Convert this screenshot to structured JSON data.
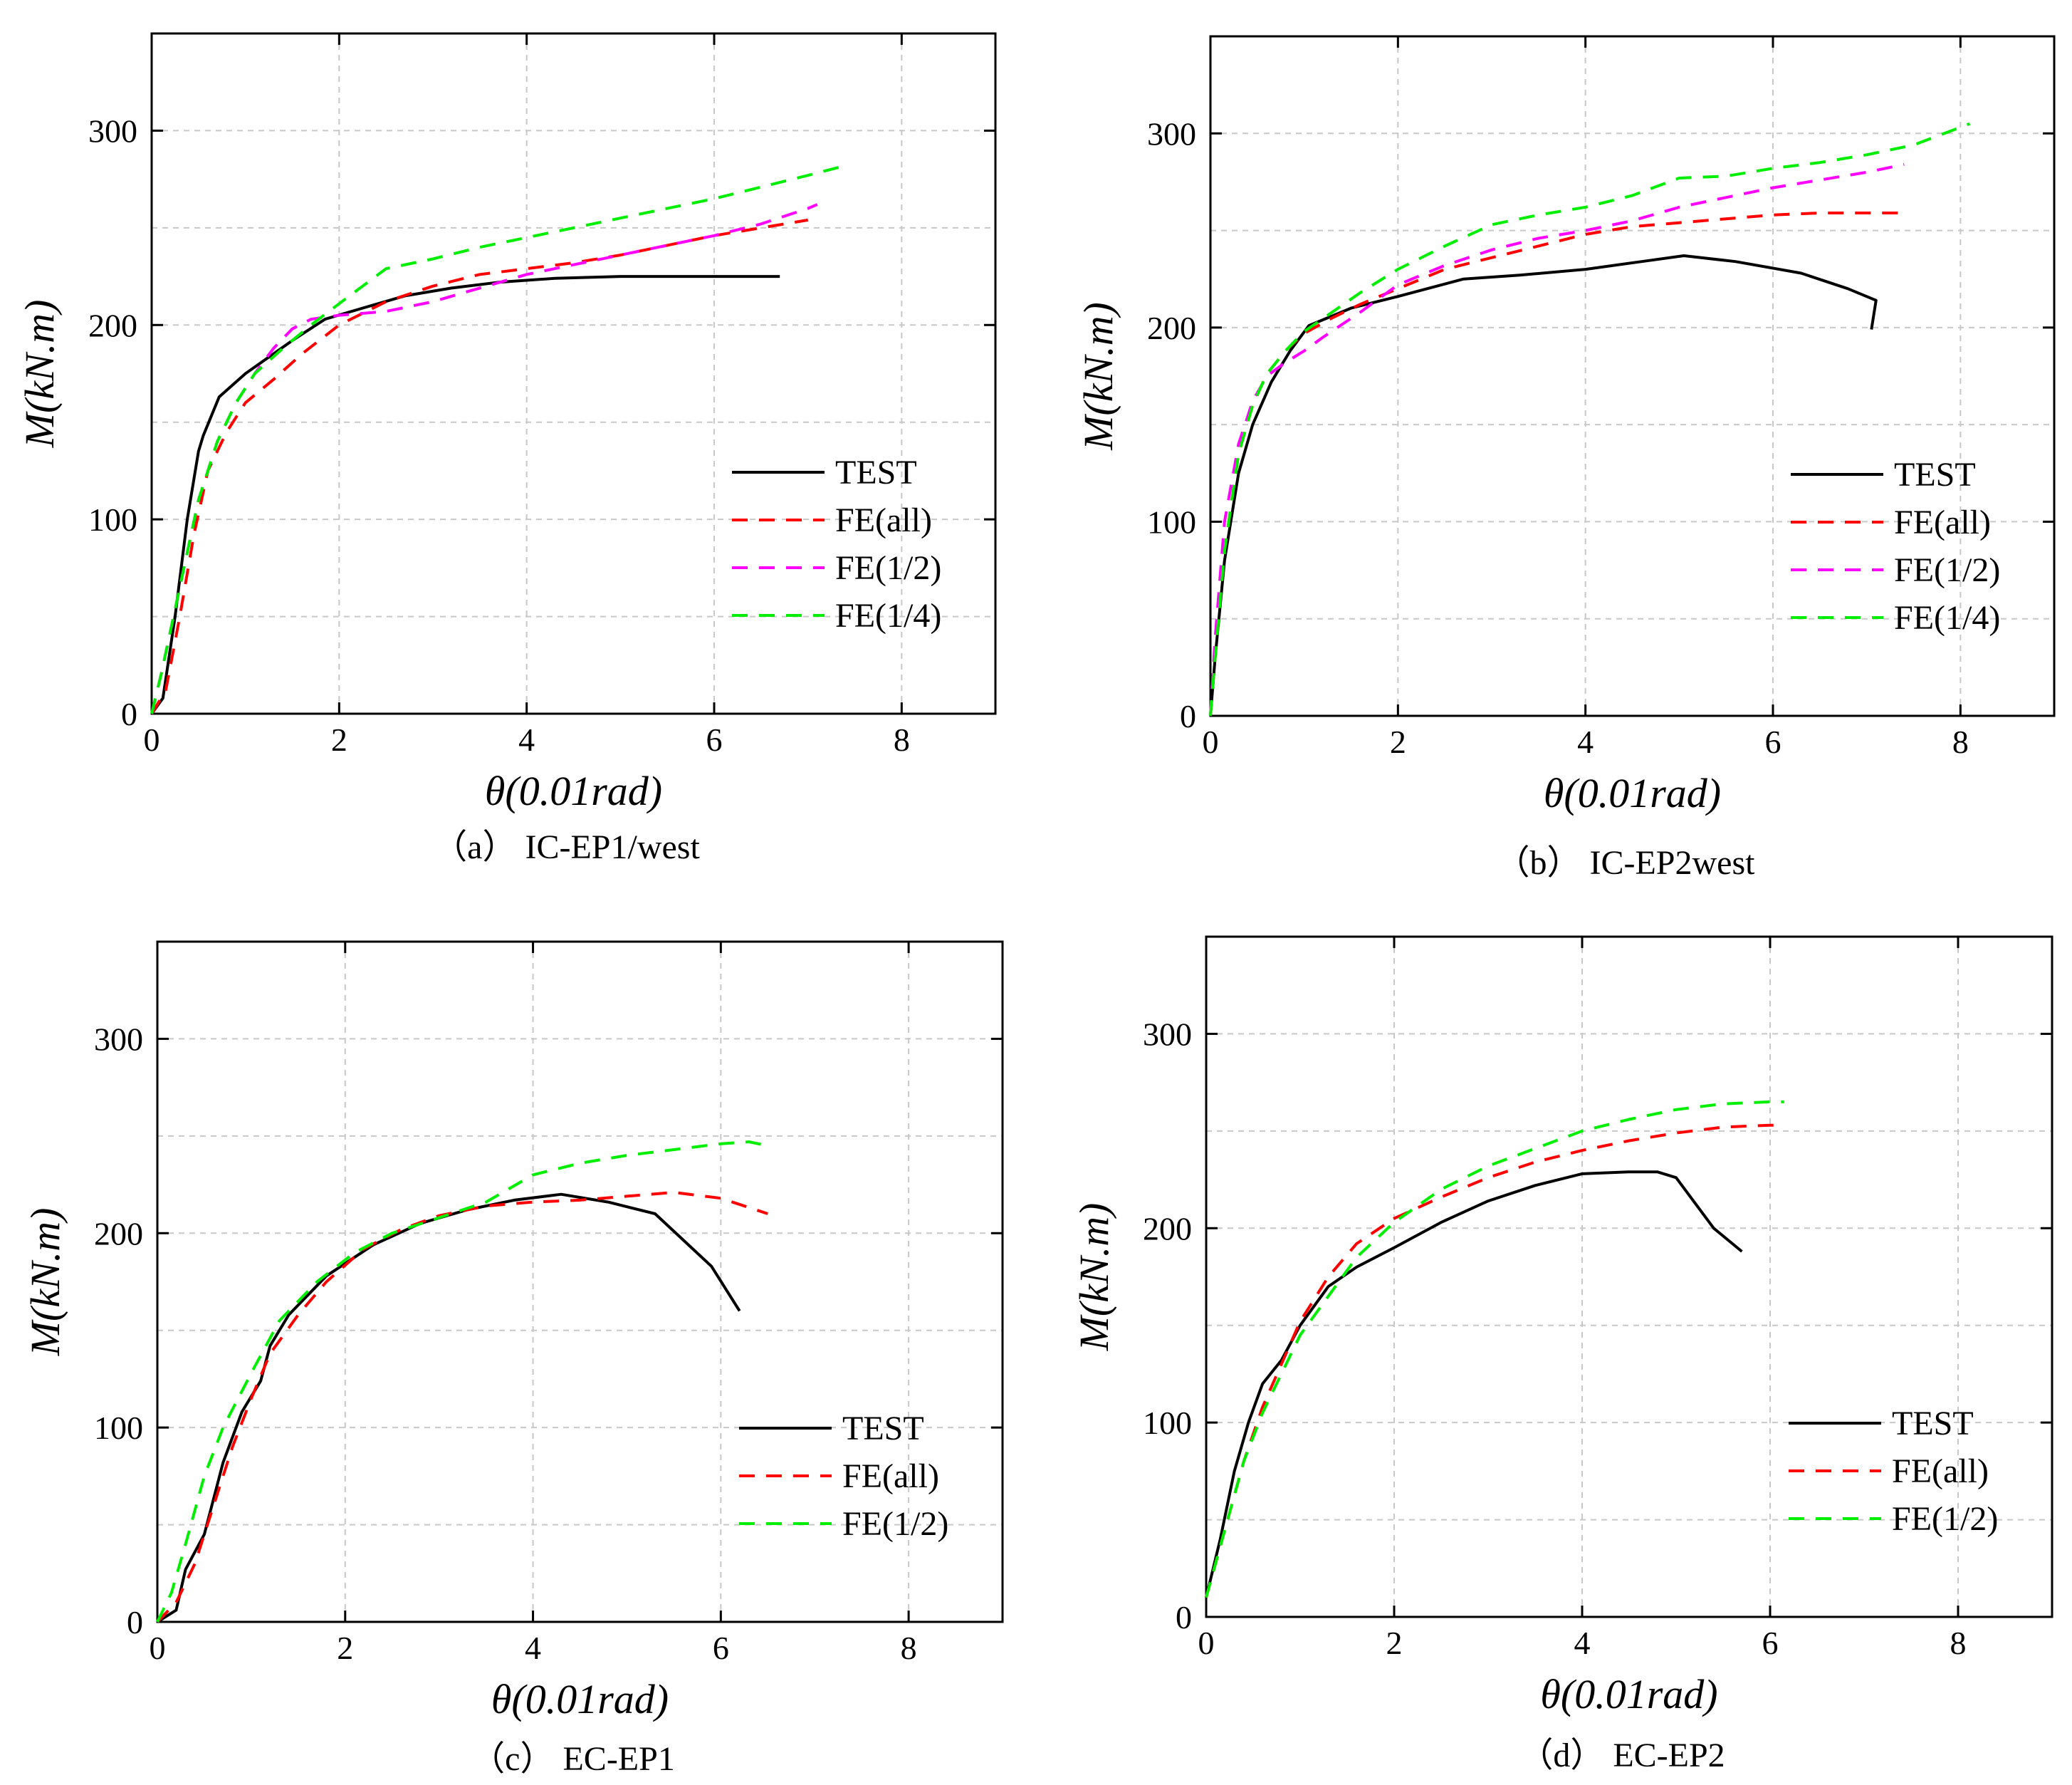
{
  "chart_data": [
    {
      "id": "a",
      "type": "line",
      "caption": "（a） IC-EP1/west",
      "xlabel": "θ(0.01rad)",
      "ylabel": "M(kN.m)",
      "xlim": [
        0,
        9
      ],
      "ylim": [
        0,
        350
      ],
      "xticks": [
        0,
        2,
        4,
        6,
        8
      ],
      "yticks": [
        0,
        100,
        200,
        300
      ],
      "grid": true,
      "legend_position": "lower-right",
      "series": [
        {
          "name": "TEST",
          "color": "#000000",
          "style": "solid",
          "x": [
            0,
            0.12,
            0.25,
            0.38,
            0.5,
            0.55,
            0.72,
            1.0,
            1.5,
            1.85,
            2.2,
            2.7,
            3.2,
            3.7,
            4.3,
            5.0,
            5.8,
            6.7
          ],
          "y": [
            0,
            8,
            50,
            100,
            135,
            143,
            163,
            175,
            192,
            203,
            208,
            215,
            219,
            222,
            224,
            225,
            225,
            225
          ]
        },
        {
          "name": "FE(all)",
          "color": "#ff0000",
          "style": "dashed",
          "x": [
            0,
            0.15,
            0.3,
            0.45,
            0.6,
            0.8,
            1.0,
            1.3,
            1.6,
            2.0,
            2.5,
            3.0,
            3.5,
            4.0,
            4.5,
            5.0,
            5.5,
            6.0,
            6.5,
            7.0
          ],
          "y": [
            0,
            12,
            50,
            92,
            125,
            145,
            160,
            172,
            185,
            200,
            212,
            220,
            226,
            229,
            232,
            236,
            241,
            246,
            250,
            254
          ]
        },
        {
          "name": "FE(1/2)",
          "color": "#ff00ff",
          "style": "dashed",
          "x": [
            0,
            0.1,
            0.3,
            0.5,
            0.7,
            0.9,
            1.1,
            1.3,
            1.5,
            1.7,
            2.0,
            2.5,
            3.0,
            3.5,
            4.0,
            4.5,
            5.0,
            5.5,
            6.0,
            6.5,
            7.0,
            7.1
          ],
          "y": [
            0,
            20,
            65,
            110,
            140,
            160,
            175,
            188,
            198,
            203,
            205,
            207,
            212,
            219,
            226,
            231,
            236,
            241,
            246,
            252,
            260,
            262
          ]
        },
        {
          "name": "FE(1/4)",
          "color": "#00ee00",
          "style": "dashed",
          "x": [
            0,
            0.1,
            0.3,
            0.5,
            0.7,
            0.9,
            1.1,
            1.4,
            1.7,
            2.0,
            2.5,
            3.0,
            3.5,
            4.0,
            4.5,
            5.0,
            5.5,
            6.0,
            6.5,
            7.0,
            7.4
          ],
          "y": [
            0,
            20,
            65,
            110,
            140,
            160,
            175,
            188,
            200,
            211,
            229,
            234,
            240,
            245,
            250,
            255,
            260,
            265,
            271,
            277,
            282
          ]
        }
      ]
    },
    {
      "id": "b",
      "type": "line",
      "caption": "（b） IC-EP2west",
      "xlabel": "θ(0.01rad)",
      "ylabel": "M(kN.m)",
      "xlim": [
        0,
        9
      ],
      "ylim": [
        0,
        350
      ],
      "xticks": [
        0,
        2,
        4,
        6,
        8
      ],
      "yticks": [
        0,
        100,
        200,
        300
      ],
      "grid": true,
      "legend_position": "lower-right",
      "series": [
        {
          "name": "TEST",
          "color": "#000000",
          "style": "solid",
          "x": [
            0,
            0.05,
            0.15,
            0.3,
            0.45,
            0.65,
            0.85,
            1.05,
            1.5,
            2.0,
            2.7,
            3.3,
            4.0,
            4.6,
            5.05,
            5.6,
            6.3,
            6.8,
            7.1,
            7.05
          ],
          "y": [
            0,
            30,
            80,
            125,
            150,
            172,
            188,
            201,
            210,
            216,
            225,
            227,
            230,
            234,
            237,
            234,
            228,
            220,
            214,
            199
          ]
        },
        {
          "name": "FE(all)",
          "color": "#ff0000",
          "style": "dashed",
          "x": [
            0,
            0.05,
            0.15,
            0.3,
            0.45,
            0.6,
            0.8,
            1.0,
            1.3,
            1.6,
            2.0,
            2.5,
            3.0,
            3.5,
            4.0,
            4.5,
            5.0,
            5.5,
            6.0,
            6.5,
            7.0,
            7.4
          ],
          "y": [
            0,
            30,
            85,
            135,
            160,
            176,
            188,
            197,
            205,
            212,
            220,
            230,
            236,
            242,
            248,
            252,
            254,
            256,
            258,
            259,
            259,
            259
          ]
        },
        {
          "name": "FE(1/2)",
          "color": "#ff00ff",
          "style": "dashed",
          "x": [
            0,
            0.05,
            0.15,
            0.3,
            0.45,
            0.6,
            0.8,
            1.0,
            1.2,
            1.6,
            2.0,
            2.5,
            3.0,
            3.5,
            4.0,
            4.5,
            5.0,
            5.5,
            6.0,
            6.5,
            7.0,
            7.4
          ],
          "y": [
            0,
            40,
            100,
            140,
            162,
            175,
            182,
            188,
            195,
            208,
            222,
            232,
            240,
            246,
            250,
            255,
            262,
            267,
            272,
            276,
            280,
            284
          ]
        },
        {
          "name": "FE(1/4)",
          "color": "#00ee00",
          "style": "dashed",
          "x": [
            0,
            0.05,
            0.15,
            0.3,
            0.45,
            0.6,
            0.8,
            1.0,
            1.3,
            1.6,
            2.0,
            2.5,
            3.0,
            3.5,
            4.0,
            4.5,
            5.0,
            5.5,
            6.0,
            6.5,
            7.0,
            7.5,
            8.1
          ],
          "y": [
            0,
            30,
            85,
            135,
            160,
            176,
            188,
            198,
            208,
            218,
            230,
            242,
            253,
            258,
            262,
            268,
            277,
            278,
            282,
            285,
            289,
            294,
            305
          ]
        }
      ]
    },
    {
      "id": "c",
      "type": "line",
      "caption": "（c） EC-EP1",
      "xlabel": "θ(0.01rad)",
      "ylabel": "M(kN.m)",
      "xlim": [
        0,
        9
      ],
      "ylim": [
        0,
        350
      ],
      "xticks": [
        0,
        2,
        4,
        6,
        8
      ],
      "yticks": [
        0,
        100,
        200,
        300
      ],
      "grid": true,
      "legend_position": "lower-right",
      "series": [
        {
          "name": "TEST",
          "color": "#000000",
          "style": "solid",
          "x": [
            0,
            0.2,
            0.3,
            0.5,
            0.7,
            0.9,
            1.1,
            1.2,
            1.4,
            1.8,
            2.3,
            2.8,
            3.3,
            3.8,
            4.3,
            4.8,
            5.3,
            5.9,
            6.2
          ],
          "y": [
            0,
            6,
            27,
            45,
            82,
            108,
            124,
            142,
            158,
            178,
            194,
            205,
            212,
            217,
            220,
            216,
            210,
            183,
            160
          ]
        },
        {
          "name": "FE(all)",
          "color": "#ff0000",
          "style": "dashed",
          "x": [
            0,
            0.2,
            0.4,
            0.6,
            0.8,
            1.0,
            1.2,
            1.5,
            1.8,
            2.2,
            2.6,
            3.0,
            3.5,
            4.0,
            4.5,
            5.0,
            5.5,
            6.0,
            6.5
          ],
          "y": [
            0,
            10,
            30,
            60,
            90,
            115,
            138,
            158,
            175,
            192,
            202,
            209,
            214,
            216,
            217,
            219,
            221,
            218,
            210
          ]
        },
        {
          "name": "FE(1/2)",
          "color": "#00ee00",
          "style": "dashed",
          "x": [
            0,
            0.15,
            0.3,
            0.5,
            0.7,
            1.0,
            1.3,
            1.7,
            2.1,
            2.5,
            3.0,
            3.5,
            4.0,
            4.5,
            5.0,
            5.5,
            6.0,
            6.3,
            6.5
          ],
          "y": [
            0,
            15,
            40,
            75,
            100,
            128,
            155,
            175,
            190,
            200,
            208,
            216,
            230,
            236,
            240,
            243,
            246,
            247,
            245
          ]
        }
      ]
    },
    {
      "id": "d",
      "type": "line",
      "caption": "（d） EC-EP2",
      "xlabel": "θ(0.01rad)",
      "ylabel": "M(kN.m)",
      "xlim": [
        0,
        9
      ],
      "ylim": [
        0,
        350
      ],
      "xticks": [
        0,
        2,
        4,
        6,
        8
      ],
      "yticks": [
        0,
        100,
        200,
        300
      ],
      "grid": true,
      "legend_position": "lower-right",
      "series": [
        {
          "name": "TEST",
          "color": "#000000",
          "style": "solid",
          "x": [
            0,
            0.15,
            0.3,
            0.45,
            0.6,
            0.8,
            1.0,
            1.3,
            1.6,
            2.0,
            2.5,
            3.0,
            3.5,
            4.0,
            4.5,
            4.8,
            5.0,
            5.4,
            5.7
          ],
          "y": [
            10,
            40,
            75,
            100,
            120,
            132,
            150,
            170,
            180,
            190,
            203,
            214,
            222,
            228,
            229,
            229,
            226,
            200,
            188
          ]
        },
        {
          "name": "FE(all)",
          "color": "#ff0000",
          "style": "dashed",
          "x": [
            0,
            0.2,
            0.4,
            0.6,
            0.8,
            1.0,
            1.3,
            1.6,
            2.0,
            2.5,
            3.0,
            3.5,
            4.0,
            4.5,
            5.0,
            5.5,
            6.0,
            6.1
          ],
          "y": [
            10,
            45,
            80,
            108,
            130,
            152,
            175,
            192,
            205,
            216,
            226,
            234,
            240,
            245,
            249,
            252,
            253,
            253
          ]
        },
        {
          "name": "FE(1/2)",
          "color": "#00ee00",
          "style": "dashed",
          "x": [
            0,
            0.2,
            0.4,
            0.6,
            0.8,
            1.0,
            1.3,
            1.6,
            2.0,
            2.5,
            3.0,
            3.5,
            4.0,
            4.5,
            5.0,
            5.5,
            6.0,
            6.15
          ],
          "y": [
            10,
            45,
            80,
            105,
            125,
            145,
            165,
            185,
            203,
            220,
            232,
            241,
            250,
            256,
            261,
            264,
            265,
            265
          ]
        }
      ]
    }
  ]
}
